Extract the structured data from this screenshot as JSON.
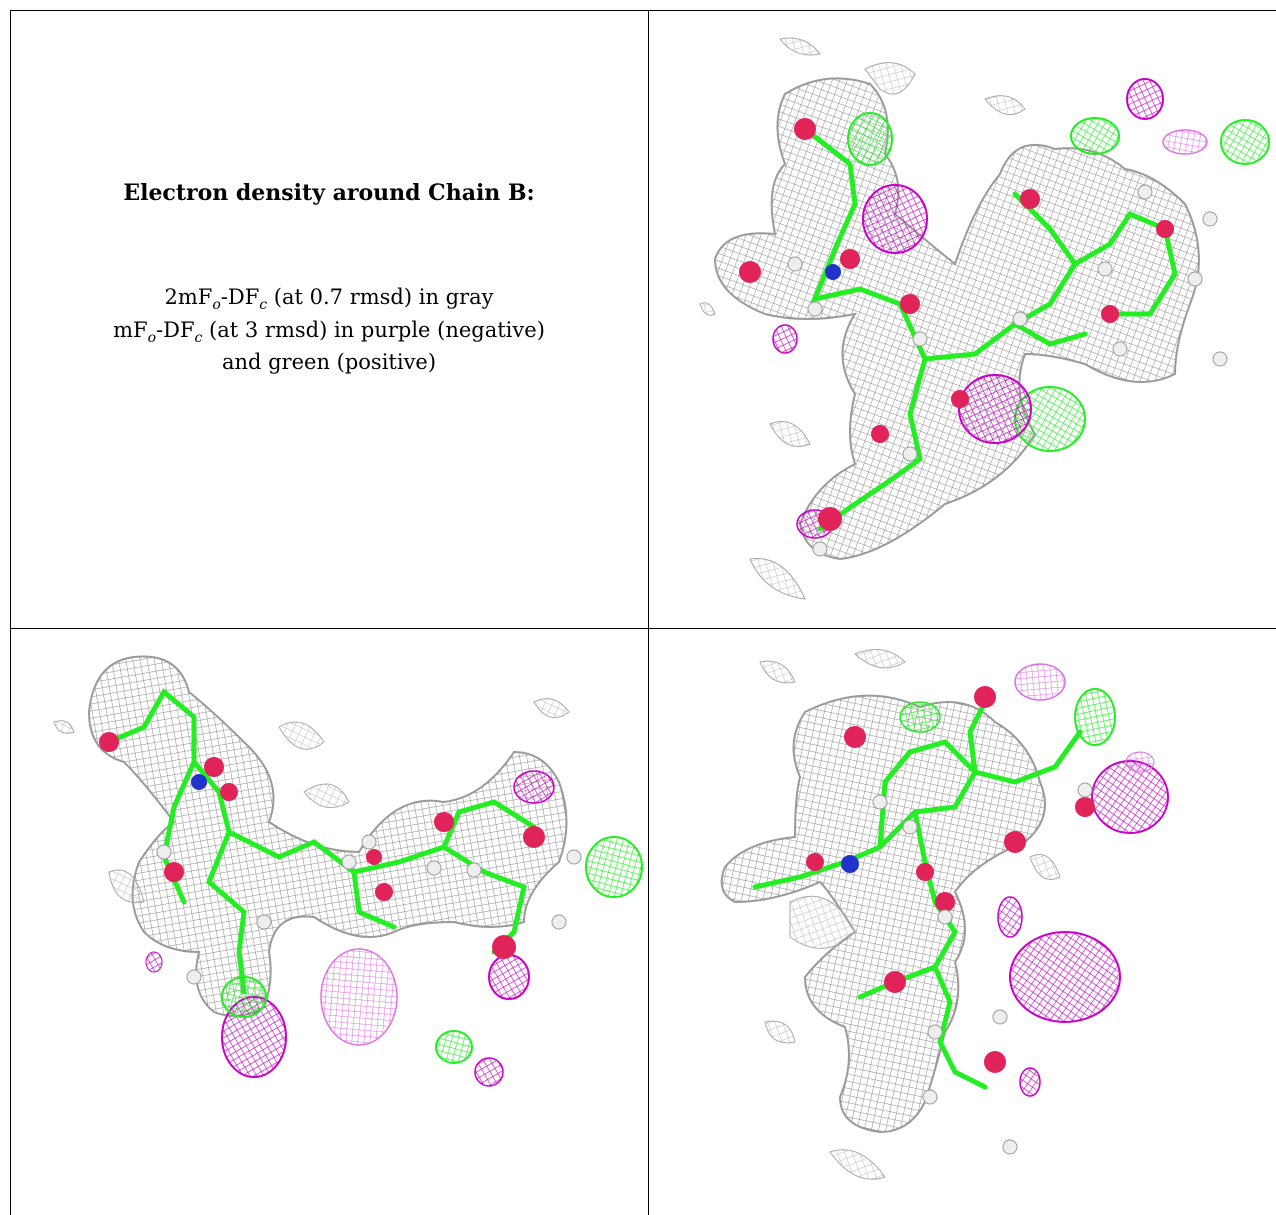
{
  "caption": {
    "title": "Electron density around Chain B:",
    "line1": {
      "a": "2mF",
      "b": "o",
      "c": "-DF",
      "d": "c",
      "e": " (at 0.7 rmsd) in gray"
    },
    "line2": {
      "a": "mF",
      "b": "o",
      "c": "-DF",
      "d": "c",
      "e": " (at 3 rmsd) in purple (negative)"
    },
    "line3": "and green (positive)"
  },
  "colors": {
    "mesh_gray": "#8c8c8c",
    "mesh_gray_light": "#c8c8c8",
    "negative_purple": "#c800c8",
    "negative_purple_light": "#e070e0",
    "positive_green": "#22ee22",
    "oxygen_red": "#e0245a",
    "nitrogen_blue": "#2233cc",
    "hydrogen_white": "#eeeeee"
  },
  "panels": [
    {
      "name": "density-view-top-right"
    },
    {
      "name": "density-view-bottom-left"
    },
    {
      "name": "density-view-bottom-right"
    }
  ]
}
